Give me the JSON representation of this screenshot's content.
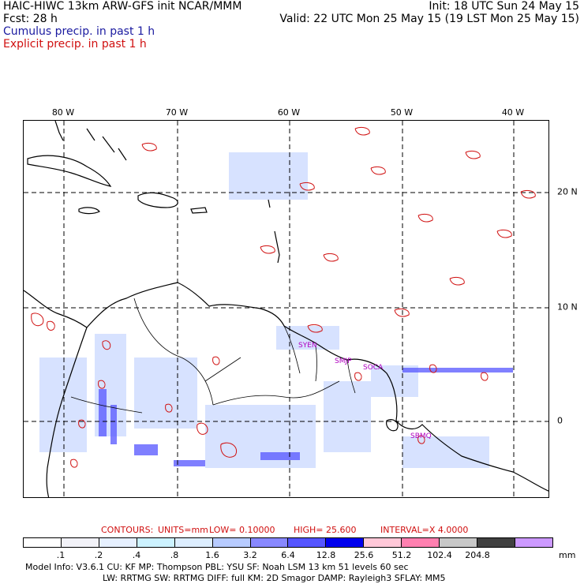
{
  "header": {
    "left_line1": "HAIC-HIWC 13km ARW-GFS init   NCAR/MMM",
    "left_line2": "Fcst:   28 h",
    "left_line3": "Cumulus precip. in past 1 h",
    "left_line4": "Explicit precip. in past 1 h",
    "right_line1": "Init: 18 UTC Sun 24 May 15",
    "right_line2": "Valid: 22 UTC Mon 25 May 15 (19 LST Mon 25 May 15)"
  },
  "colors": {
    "cumulus": "#1a1aa0",
    "explicit": "#d01010",
    "coast": "#000000",
    "grid": "#000000",
    "station_label": "#b000c0"
  },
  "map": {
    "longitude_labels": [
      "80 W",
      "70 W",
      "60 W",
      "50 W",
      "40 W"
    ],
    "latitude_labels": [
      "20 N",
      "10 N",
      "0"
    ],
    "station_labels": [
      "SYEN",
      "SMJP",
      "SOCA",
      "SBMQ"
    ],
    "grid_lines": "dashed"
  },
  "contours": {
    "label": "CONTOURS:",
    "units": "UNITS=mm",
    "low": "LOW= 0.10000",
    "high": "HIGH=  25.600",
    "interval": "INTERVAL=X  4.0000"
  },
  "scale": {
    "unit": "mm",
    "ticks": [
      ".1",
      ".2",
      ".4",
      ".8",
      "1.6",
      "3.2",
      "6.4",
      "12.8",
      "25.6",
      "51.2",
      "102.4",
      "204.8"
    ],
    "colors": [
      "#ffffff",
      "#f2f2f8",
      "#e6f0ff",
      "#ccf2ff",
      "#ddeeff",
      "#b7cbff",
      "#8888ff",
      "#5555ff",
      "#0000ee",
      "#ffc8d8",
      "#ff80b0",
      "#c8c8c8",
      "#404040",
      "#cc99ff"
    ]
  },
  "model_info": {
    "line1": "Model Info: V3.6.1      CU: KF         MP: Thompson       PBL: YSU        SF: Noah LSM     13 km    51 levels   60 sec",
    "line2": "LW: RRTMG     SW: RRTMG   DIFF: full    KM: 2D Smagor DAMP: Rayleigh3  SFLAY: MM5"
  }
}
